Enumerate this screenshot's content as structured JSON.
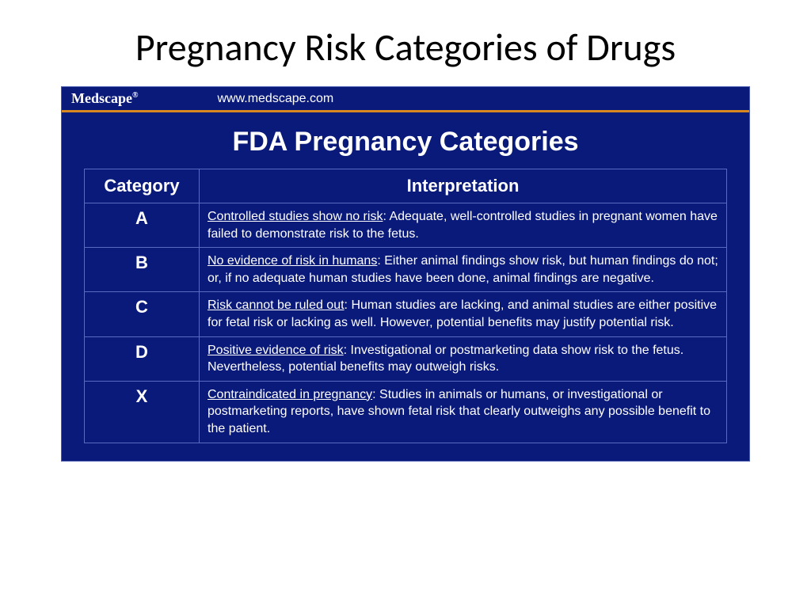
{
  "slide": {
    "title": "Pregnancy Risk Categories of Drugs"
  },
  "panel": {
    "brand": "Medscape",
    "brand_symbol": "®",
    "url": "www.medscape.com",
    "title": "FDA Pregnancy Categories",
    "background_color": "#0a1a7a",
    "accent_color": "#d98820",
    "border_color": "#5a6ac0",
    "text_color": "#ffffff"
  },
  "table": {
    "type": "table",
    "columns": [
      "Category",
      "Interpretation"
    ],
    "rows": [
      {
        "category": "A",
        "lead": "Controlled studies show no risk",
        "rest": ": Adequate, well-controlled studies in pregnant women have failed to demonstrate risk to the fetus."
      },
      {
        "category": "B",
        "lead": "No evidence of risk in humans",
        "rest": ": Either animal findings show risk, but human findings do not; or, if no adequate human studies have been done, animal findings are negative."
      },
      {
        "category": "C",
        "lead": "Risk cannot be ruled out",
        "rest": ": Human studies are lacking, and animal studies are either positive for fetal risk or lacking as well. However, potential benefits may justify potential risk."
      },
      {
        "category": "D",
        "lead": "Positive evidence of risk",
        "rest": ": Investigational or postmarketing data show risk to the fetus. Nevertheless, potential benefits may outweigh risks."
      },
      {
        "category": "X",
        "lead": "Contraindicated in pregnancy",
        "rest": ": Studies in animals or humans, or investigational or postmarketing reports, have shown fetal risk that clearly outweighs any possible benefit to the patient."
      }
    ]
  }
}
